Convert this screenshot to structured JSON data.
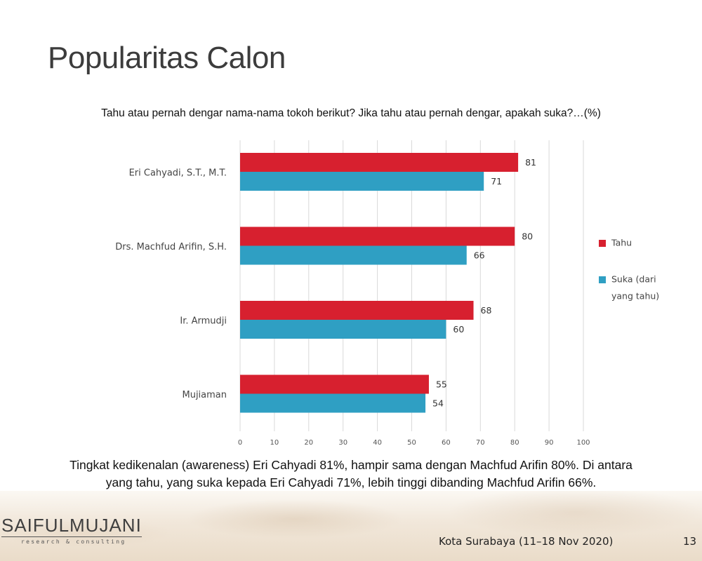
{
  "slide": {
    "title": "Popularitas Calon",
    "question": "Tahu atau pernah dengar nama-nama tokoh berikut? Jika tahu atau pernah dengar, apakah suka?…(%)",
    "conclusion_line1": "Tingkat kedikenalan (awareness) Eri Cahyadi 81%, hampir sama dengan Machfud Arifin 80%. Di antara",
    "conclusion_line2": "yang tahu, yang suka kepada Eri Cahyadi 71%, lebih tinggi dibanding Machfud Arifin 66%.",
    "logo_main": "SAIFULMUJANI",
    "logo_sub": "research & consulting",
    "footer_location": "Kota Surabaya (11–18 Nov 2020)",
    "page_number": "13"
  },
  "chart_data": {
    "type": "bar",
    "orientation": "horizontal",
    "categories": [
      "Eri Cahyadi, S.T., M.T.",
      "Drs. Machfud Arifin, S.H.",
      "Ir. Armudji",
      "Mujiaman"
    ],
    "series": [
      {
        "name": "Tahu",
        "color": "#d7202f",
        "values": [
          81,
          80,
          68,
          55
        ]
      },
      {
        "name": "Suka (dari yang tahu)",
        "color": "#2f9fc3",
        "values": [
          71,
          66,
          60,
          54
        ]
      }
    ],
    "legend_lines": [
      [
        "Tahu"
      ],
      [
        "Suka (dari",
        "yang tahu)"
      ]
    ],
    "xlim": [
      0,
      100
    ],
    "xticks": [
      0,
      10,
      20,
      30,
      40,
      50,
      60,
      70,
      80,
      90,
      100
    ],
    "grid": true,
    "legend_position": "right",
    "data_labels": true
  }
}
